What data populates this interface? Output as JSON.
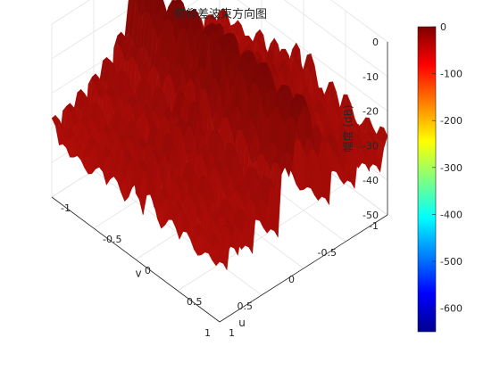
{
  "chart_data": {
    "type": "surface",
    "title": "俯仰差波束方向图",
    "xlabel": "u",
    "ylabel": "v",
    "zlabel": "幅度 (dB)",
    "xlim": [
      -1,
      1
    ],
    "ylim": [
      -1,
      1
    ],
    "zlim": [
      -50,
      0
    ],
    "x_ticks": [
      "-1",
      "-0.5",
      "0",
      "0.5",
      "1"
    ],
    "y_ticks": [
      "-1",
      "-0.5",
      "0",
      "0.5",
      "1"
    ],
    "z_ticks": [
      "0",
      "-10",
      "-20",
      "-30",
      "-40",
      "-50"
    ],
    "grid": true,
    "colormap": "jet",
    "colorbar": {
      "range": [
        -650,
        0
      ],
      "ticks": [
        "0",
        "-100",
        "-200",
        "-300",
        "-400",
        "-500",
        "-600"
      ]
    },
    "surface": {
      "description_values": {
        "peak_db": 0,
        "floor_db": -50,
        "mainlobes": [
          {
            "u": 0.0,
            "v": -0.1,
            "db": 0
          },
          {
            "u": 0.0,
            "v": 0.1,
            "db": 0
          }
        ],
        "sidelobe_db_range": [
          -45,
          -12
        ]
      }
    },
    "colors": {
      "surface_face": "#c8100a",
      "surface_dark": "#7a0505",
      "low_face": "#a6e04a",
      "grid": "#e3e3e3",
      "axis": "#262626"
    }
  }
}
